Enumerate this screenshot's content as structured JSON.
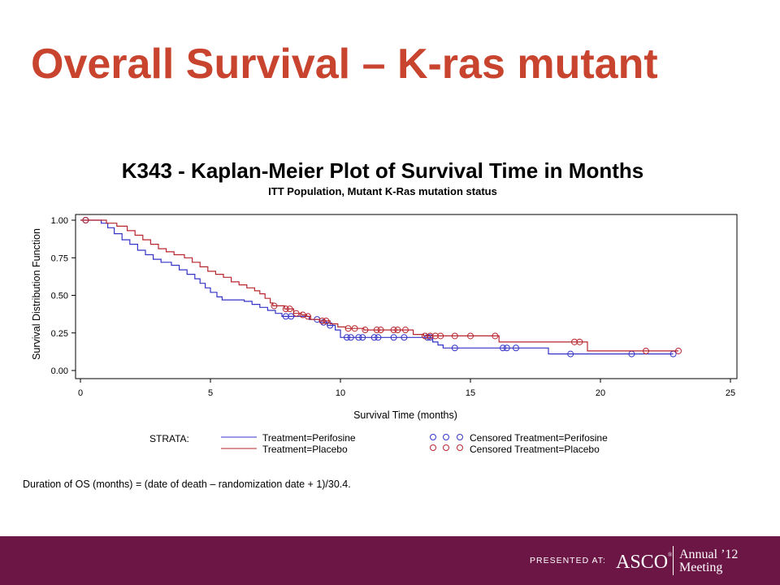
{
  "slide": {
    "title": "Overall Survival – K-ras mutant",
    "title_color": "#c8442f",
    "footnote": "Duration of OS (months) = (date of death – randomization date + 1)/30.4."
  },
  "footer": {
    "background": "#6c1646",
    "presented_at": "PRESENTED AT:",
    "logo": "ASCO",
    "meeting_line1": "Annual ’12",
    "meeting_line2": "Meeting"
  },
  "chart_data": {
    "type": "line",
    "title": "K343 - Kaplan-Meier Plot of Survival Time in Months",
    "subtitle": "ITT Population, Mutant K-Ras mutation status",
    "xlabel": "Survival Time (months)",
    "ylabel": "Survival Distribution Function",
    "xlim": [
      0,
      25
    ],
    "ylim": [
      0,
      1
    ],
    "x_ticks": [
      0,
      5,
      10,
      15,
      20,
      25
    ],
    "x_tick_labels": [
      "0",
      "5",
      "10",
      "15",
      "20",
      "25"
    ],
    "y_ticks": [
      0,
      0.25,
      0.5,
      0.75,
      1
    ],
    "y_tick_labels": [
      "0.00",
      "0.25",
      "0.50",
      "0.75",
      "1.00"
    ],
    "grid": false,
    "legend": {
      "title": "STRATA:",
      "placement": "bottom"
    },
    "series": [
      {
        "name": "Treatment=Perifosine",
        "censored_name": "Censored Treatment=Perifosine",
        "color": "#3434c8",
        "steps": [
          [
            0,
            1
          ],
          [
            0.8,
            0.98
          ],
          [
            1.05,
            0.95
          ],
          [
            1.3,
            0.91
          ],
          [
            1.6,
            0.87
          ],
          [
            1.9,
            0.84
          ],
          [
            2.2,
            0.8
          ],
          [
            2.5,
            0.77
          ],
          [
            2.8,
            0.74
          ],
          [
            3.1,
            0.72
          ],
          [
            3.5,
            0.7
          ],
          [
            3.8,
            0.67
          ],
          [
            4.1,
            0.64
          ],
          [
            4.4,
            0.61
          ],
          [
            4.6,
            0.58
          ],
          [
            4.8,
            0.55
          ],
          [
            5.0,
            0.52
          ],
          [
            5.25,
            0.49
          ],
          [
            5.45,
            0.47
          ],
          [
            6.3,
            0.46
          ],
          [
            6.6,
            0.44
          ],
          [
            6.9,
            0.42
          ],
          [
            7.2,
            0.4
          ],
          [
            7.5,
            0.38
          ],
          [
            7.75,
            0.36
          ],
          [
            8.8,
            0.34
          ],
          [
            9.2,
            0.32
          ],
          [
            9.5,
            0.3
          ],
          [
            9.8,
            0.27
          ],
          [
            10.0,
            0.22
          ],
          [
            13.55,
            0.19
          ],
          [
            13.75,
            0.17
          ],
          [
            13.95,
            0.15
          ],
          [
            18.0,
            0.11
          ]
        ],
        "censored": [
          [
            0.2,
            1
          ],
          [
            7.9,
            0.36
          ],
          [
            8.1,
            0.36
          ],
          [
            9.1,
            0.34
          ],
          [
            9.35,
            0.32
          ],
          [
            9.6,
            0.3
          ],
          [
            10.25,
            0.22
          ],
          [
            10.4,
            0.22
          ],
          [
            10.7,
            0.22
          ],
          [
            10.85,
            0.22
          ],
          [
            11.3,
            0.22
          ],
          [
            11.45,
            0.22
          ],
          [
            12.05,
            0.22
          ],
          [
            12.45,
            0.22
          ],
          [
            13.35,
            0.22
          ],
          [
            13.45,
            0.22
          ],
          [
            14.4,
            0.15
          ],
          [
            16.25,
            0.15
          ],
          [
            16.4,
            0.15
          ],
          [
            16.75,
            0.15
          ],
          [
            18.85,
            0.11
          ],
          [
            21.2,
            0.11
          ],
          [
            22.8,
            0.11
          ]
        ]
      },
      {
        "name": "Treatment=Placebo",
        "censored_name": "Censored Treatment=Placebo",
        "color": "#b8262e",
        "steps": [
          [
            0,
            1
          ],
          [
            1.0,
            0.98
          ],
          [
            1.4,
            0.96
          ],
          [
            1.8,
            0.93
          ],
          [
            2.1,
            0.9
          ],
          [
            2.4,
            0.87
          ],
          [
            2.7,
            0.84
          ],
          [
            3.0,
            0.81
          ],
          [
            3.3,
            0.79
          ],
          [
            3.6,
            0.77
          ],
          [
            4.0,
            0.75
          ],
          [
            4.3,
            0.72
          ],
          [
            4.6,
            0.69
          ],
          [
            4.9,
            0.66
          ],
          [
            5.2,
            0.64
          ],
          [
            5.5,
            0.62
          ],
          [
            5.8,
            0.59
          ],
          [
            6.1,
            0.57
          ],
          [
            6.4,
            0.55
          ],
          [
            6.7,
            0.53
          ],
          [
            6.9,
            0.51
          ],
          [
            7.1,
            0.48
          ],
          [
            7.3,
            0.45
          ],
          [
            7.4,
            0.43
          ],
          [
            7.85,
            0.41
          ],
          [
            8.2,
            0.38
          ],
          [
            8.5,
            0.37
          ],
          [
            8.7,
            0.36
          ],
          [
            8.85,
            0.34
          ],
          [
            9.2,
            0.33
          ],
          [
            9.6,
            0.31
          ],
          [
            9.9,
            0.29
          ],
          [
            10.2,
            0.28
          ],
          [
            10.9,
            0.27
          ],
          [
            12.8,
            0.24
          ],
          [
            13.2,
            0.23
          ],
          [
            16.1,
            0.19
          ],
          [
            19.5,
            0.13
          ]
        ],
        "censored": [
          [
            0.2,
            1
          ],
          [
            7.45,
            0.43
          ],
          [
            7.9,
            0.41
          ],
          [
            8.05,
            0.41
          ],
          [
            8.3,
            0.38
          ],
          [
            8.55,
            0.37
          ],
          [
            8.75,
            0.36
          ],
          [
            9.3,
            0.33
          ],
          [
            9.45,
            0.33
          ],
          [
            10.3,
            0.28
          ],
          [
            10.55,
            0.28
          ],
          [
            10.95,
            0.27
          ],
          [
            11.4,
            0.27
          ],
          [
            11.55,
            0.27
          ],
          [
            12.05,
            0.27
          ],
          [
            12.2,
            0.27
          ],
          [
            12.5,
            0.27
          ],
          [
            13.25,
            0.23
          ],
          [
            13.45,
            0.23
          ],
          [
            13.65,
            0.23
          ],
          [
            13.85,
            0.23
          ],
          [
            14.4,
            0.23
          ],
          [
            15.0,
            0.23
          ],
          [
            15.95,
            0.23
          ],
          [
            19.0,
            0.19
          ],
          [
            19.2,
            0.19
          ],
          [
            21.75,
            0.13
          ],
          [
            23.0,
            0.13
          ]
        ]
      }
    ]
  }
}
